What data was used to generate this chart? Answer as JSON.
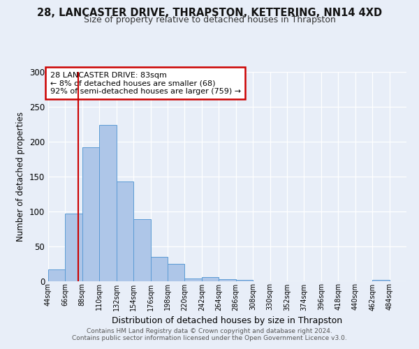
{
  "title1": "28, LANCASTER DRIVE, THRAPSTON, KETTERING, NN14 4XD",
  "title2": "Size of property relative to detached houses in Thrapston",
  "xlabel": "Distribution of detached houses by size in Thrapston",
  "ylabel": "Number of detached properties",
  "bin_edges": [
    44,
    66,
    88,
    110,
    132,
    154,
    176,
    198,
    220,
    242,
    264,
    286,
    308,
    330,
    352,
    374,
    396,
    418,
    440,
    462,
    484,
    506
  ],
  "bin_heights": [
    17,
    97,
    192,
    224,
    143,
    89,
    35,
    25,
    4,
    6,
    3,
    2,
    0,
    0,
    0,
    0,
    0,
    0,
    0,
    2,
    0
  ],
  "bar_color": "#aec6e8",
  "bar_edge_color": "#5b9bd5",
  "property_value": 83,
  "vline_color": "#cc0000",
  "annotation_title": "28 LANCASTER DRIVE: 83sqm",
  "annotation_line1": "← 8% of detached houses are smaller (68)",
  "annotation_line2": "92% of semi-detached houses are larger (759) →",
  "annotation_box_color": "#cc0000",
  "ylim": [
    0,
    300
  ],
  "yticks": [
    0,
    50,
    100,
    150,
    200,
    250,
    300
  ],
  "footer1": "Contains HM Land Registry data © Crown copyright and database right 2024.",
  "footer2": "Contains public sector information licensed under the Open Government Licence v3.0.",
  "background_color": "#e8eef8",
  "plot_bg_color": "#e8eef8",
  "title1_fontsize": 10.5,
  "title2_fontsize": 9
}
